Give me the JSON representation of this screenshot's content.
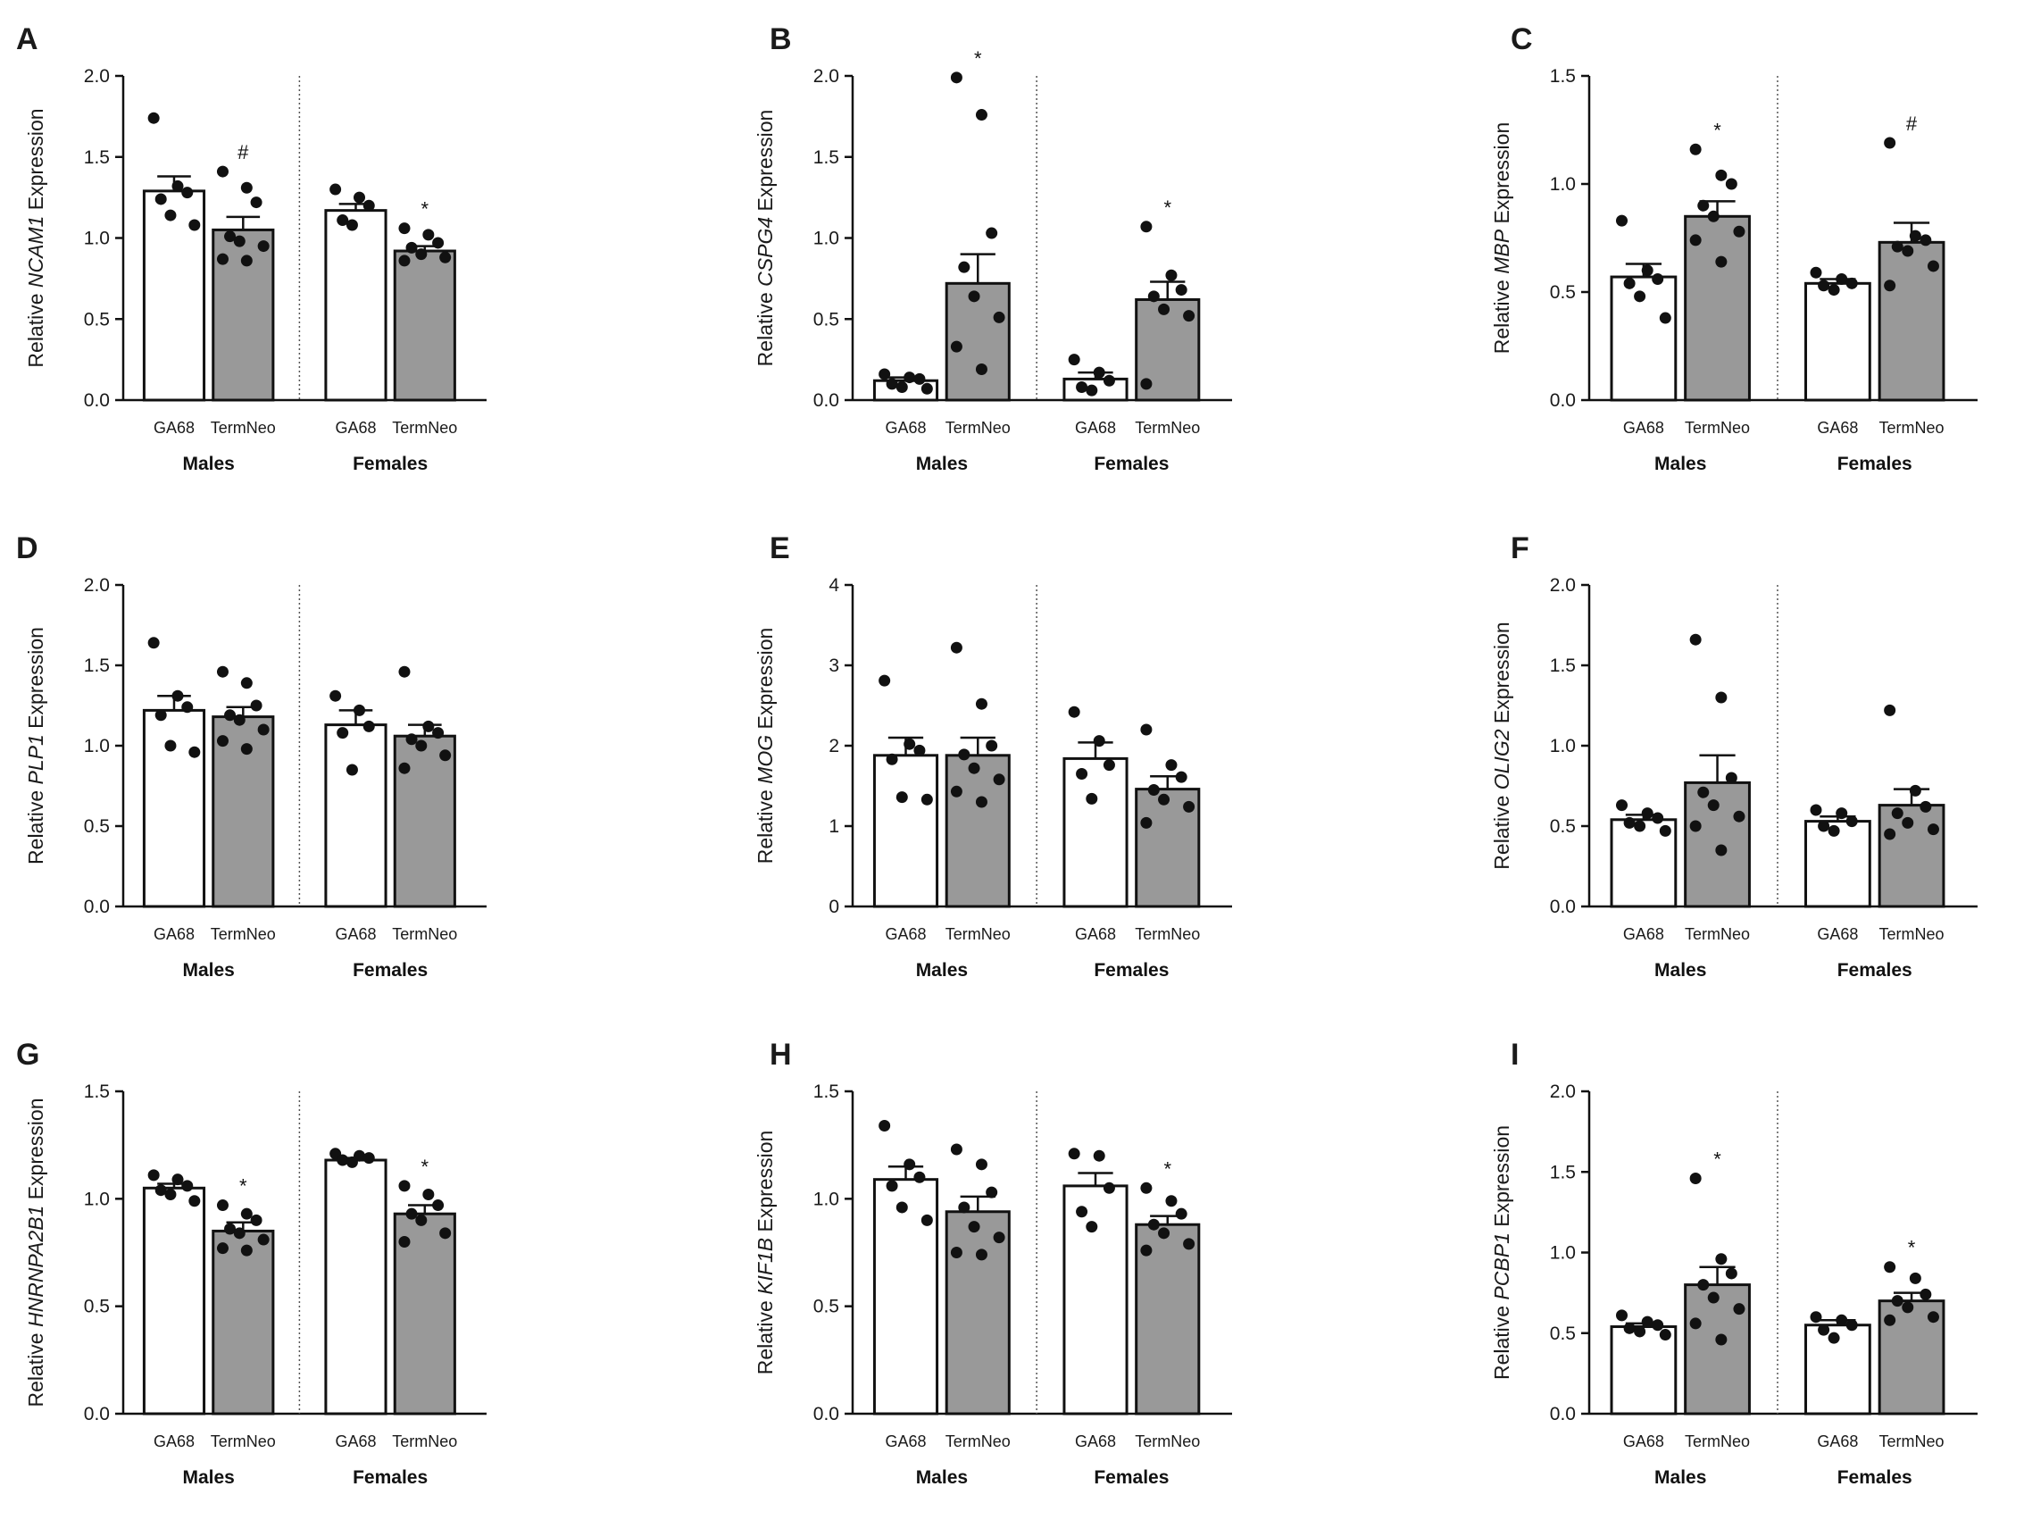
{
  "chart_data": [
    {
      "type": "bar",
      "panel": "A",
      "gene": "NCAM1",
      "ylabel_prefix": "Relative ",
      "ylabel_suffix": " Expression",
      "ylim": [
        0,
        2.0
      ],
      "yticks": [
        "0.0",
        "0.5",
        "1.0",
        "1.5",
        "2.0"
      ],
      "groups": [
        "Males",
        "Females"
      ],
      "categories": [
        "GA68",
        "TermNeo"
      ],
      "bars": [
        {
          "group": "Males",
          "category": "GA68",
          "mean": 1.29,
          "sem": 0.09,
          "points": [
            1.74,
            1.32,
            1.28,
            1.24,
            1.14,
            1.08
          ],
          "sig": ""
        },
        {
          "group": "Males",
          "category": "TermNeo",
          "mean": 1.05,
          "sem": 0.08,
          "points": [
            1.41,
            1.31,
            1.22,
            1.01,
            0.98,
            0.95,
            0.87,
            0.86
          ],
          "sig": "#"
        },
        {
          "group": "Females",
          "category": "GA68",
          "mean": 1.17,
          "sem": 0.04,
          "points": [
            1.3,
            1.25,
            1.2,
            1.11,
            1.08
          ],
          "sig": ""
        },
        {
          "group": "Females",
          "category": "TermNeo",
          "mean": 0.92,
          "sem": 0.03,
          "points": [
            1.06,
            1.02,
            0.97,
            0.94,
            0.9,
            0.88,
            0.86
          ],
          "sig": "*"
        }
      ]
    },
    {
      "type": "bar",
      "panel": "B",
      "gene": "CSPG4",
      "ylabel_prefix": "Relative ",
      "ylabel_suffix": " Expression",
      "ylim": [
        0,
        2.0
      ],
      "yticks": [
        "0.0",
        "0.5",
        "1.0",
        "1.5",
        "2.0"
      ],
      "groups": [
        "Males",
        "Females"
      ],
      "categories": [
        "GA68",
        "TermNeo"
      ],
      "bars": [
        {
          "group": "Males",
          "category": "GA68",
          "mean": 0.12,
          "sem": 0.02,
          "points": [
            0.16,
            0.14,
            0.13,
            0.1,
            0.08,
            0.07
          ],
          "sig": ""
        },
        {
          "group": "Males",
          "category": "TermNeo",
          "mean": 0.72,
          "sem": 0.18,
          "points": [
            1.99,
            1.76,
            1.03,
            0.82,
            0.64,
            0.51,
            0.33,
            0.19
          ],
          "sig": "*"
        },
        {
          "group": "Females",
          "category": "GA68",
          "mean": 0.13,
          "sem": 0.04,
          "points": [
            0.25,
            0.17,
            0.12,
            0.08,
            0.06
          ],
          "sig": ""
        },
        {
          "group": "Females",
          "category": "TermNeo",
          "mean": 0.62,
          "sem": 0.11,
          "points": [
            1.07,
            0.77,
            0.68,
            0.64,
            0.56,
            0.52,
            0.1
          ],
          "sig": "*"
        }
      ]
    },
    {
      "type": "bar",
      "panel": "C",
      "gene": "MBP",
      "ylabel_prefix": "Relative ",
      "ylabel_suffix": " Expression",
      "ylim": [
        0,
        1.5
      ],
      "yticks": [
        "0.0",
        "0.5",
        "1.0",
        "1.5"
      ],
      "groups": [
        "Males",
        "Females"
      ],
      "categories": [
        "GA68",
        "TermNeo"
      ],
      "bars": [
        {
          "group": "Males",
          "category": "GA68",
          "mean": 0.57,
          "sem": 0.06,
          "points": [
            0.83,
            0.6,
            0.56,
            0.54,
            0.48,
            0.38
          ],
          "sig": ""
        },
        {
          "group": "Males",
          "category": "TermNeo",
          "mean": 0.85,
          "sem": 0.07,
          "points": [
            1.16,
            1.04,
            1.0,
            0.9,
            0.85,
            0.78,
            0.74,
            0.64
          ],
          "sig": "*"
        },
        {
          "group": "Females",
          "category": "GA68",
          "mean": 0.54,
          "sem": 0.02,
          "points": [
            0.59,
            0.56,
            0.54,
            0.53,
            0.51
          ],
          "sig": ""
        },
        {
          "group": "Females",
          "category": "TermNeo",
          "mean": 0.73,
          "sem": 0.09,
          "points": [
            1.19,
            0.76,
            0.74,
            0.71,
            0.69,
            0.62,
            0.53
          ],
          "sig": "#"
        }
      ]
    },
    {
      "type": "bar",
      "panel": "D",
      "gene": "PLP1",
      "ylabel_prefix": "Relative ",
      "ylabel_suffix": " Expression",
      "ylim": [
        0,
        2.0
      ],
      "yticks": [
        "0.0",
        "0.5",
        "1.0",
        "1.5",
        "2.0"
      ],
      "groups": [
        "Males",
        "Females"
      ],
      "categories": [
        "GA68",
        "TermNeo"
      ],
      "bars": [
        {
          "group": "Males",
          "category": "GA68",
          "mean": 1.22,
          "sem": 0.09,
          "points": [
            1.64,
            1.31,
            1.24,
            1.19,
            1.0,
            0.96
          ],
          "sig": ""
        },
        {
          "group": "Males",
          "category": "TermNeo",
          "mean": 1.18,
          "sem": 0.06,
          "points": [
            1.46,
            1.39,
            1.25,
            1.19,
            1.16,
            1.1,
            1.03,
            0.98
          ],
          "sig": ""
        },
        {
          "group": "Females",
          "category": "GA68",
          "mean": 1.13,
          "sem": 0.09,
          "points": [
            1.31,
            1.22,
            1.12,
            1.08,
            0.85
          ],
          "sig": ""
        },
        {
          "group": "Females",
          "category": "TermNeo",
          "mean": 1.06,
          "sem": 0.07,
          "points": [
            1.46,
            1.12,
            1.08,
            1.04,
            1.0,
            0.94,
            0.86
          ],
          "sig": ""
        }
      ]
    },
    {
      "type": "bar",
      "panel": "E",
      "gene": "MOG",
      "ylabel_prefix": "Relative ",
      "ylabel_suffix": " Expression",
      "ylim": [
        0,
        4
      ],
      "yticks": [
        "0",
        "1",
        "2",
        "3",
        "4"
      ],
      "groups": [
        "Males",
        "Females"
      ],
      "categories": [
        "GA68",
        "TermNeo"
      ],
      "bars": [
        {
          "group": "Males",
          "category": "GA68",
          "mean": 1.88,
          "sem": 0.22,
          "points": [
            2.81,
            2.02,
            1.94,
            1.83,
            1.36,
            1.33
          ],
          "sig": ""
        },
        {
          "group": "Males",
          "category": "TermNeo",
          "mean": 1.88,
          "sem": 0.22,
          "points": [
            3.22,
            2.52,
            2.0,
            1.89,
            1.72,
            1.58,
            1.43,
            1.3
          ],
          "sig": ""
        },
        {
          "group": "Females",
          "category": "GA68",
          "mean": 1.84,
          "sem": 0.2,
          "points": [
            2.42,
            2.06,
            1.76,
            1.65,
            1.34
          ],
          "sig": ""
        },
        {
          "group": "Females",
          "category": "TermNeo",
          "mean": 1.46,
          "sem": 0.16,
          "points": [
            2.2,
            1.76,
            1.61,
            1.45,
            1.33,
            1.24,
            1.04
          ],
          "sig": ""
        }
      ]
    },
    {
      "type": "bar",
      "panel": "F",
      "gene": "OLIG2",
      "ylabel_prefix": "Relative ",
      "ylabel_suffix": " Expression",
      "ylim": [
        0,
        2.0
      ],
      "yticks": [
        "0.0",
        "0.5",
        "1.0",
        "1.5",
        "2.0"
      ],
      "groups": [
        "Males",
        "Females"
      ],
      "categories": [
        "GA68",
        "TermNeo"
      ],
      "bars": [
        {
          "group": "Males",
          "category": "GA68",
          "mean": 0.54,
          "sem": 0.03,
          "points": [
            0.63,
            0.58,
            0.55,
            0.52,
            0.5,
            0.47
          ],
          "sig": ""
        },
        {
          "group": "Males",
          "category": "TermNeo",
          "mean": 0.77,
          "sem": 0.17,
          "points": [
            1.66,
            1.3,
            0.8,
            0.71,
            0.63,
            0.56,
            0.5,
            0.35
          ],
          "sig": ""
        },
        {
          "group": "Females",
          "category": "GA68",
          "mean": 0.53,
          "sem": 0.03,
          "points": [
            0.6,
            0.58,
            0.53,
            0.5,
            0.47
          ],
          "sig": ""
        },
        {
          "group": "Females",
          "category": "TermNeo",
          "mean": 0.63,
          "sem": 0.1,
          "points": [
            1.22,
            0.72,
            0.62,
            0.58,
            0.52,
            0.48,
            0.45
          ],
          "sig": ""
        }
      ]
    },
    {
      "type": "bar",
      "panel": "G",
      "gene": "HNRNPA2B1",
      "ylabel_prefix": "Relative ",
      "ylabel_suffix": " Expression",
      "ylim": [
        0,
        1.5
      ],
      "yticks": [
        "0.0",
        "0.5",
        "1.0",
        "1.5"
      ],
      "groups": [
        "Males",
        "Females"
      ],
      "categories": [
        "GA68",
        "TermNeo"
      ],
      "bars": [
        {
          "group": "Males",
          "category": "GA68",
          "mean": 1.05,
          "sem": 0.02,
          "points": [
            1.11,
            1.09,
            1.06,
            1.04,
            1.02,
            0.99
          ],
          "sig": ""
        },
        {
          "group": "Males",
          "category": "TermNeo",
          "mean": 0.85,
          "sem": 0.04,
          "points": [
            0.97,
            0.93,
            0.9,
            0.86,
            0.84,
            0.81,
            0.77,
            0.76
          ],
          "sig": "*"
        },
        {
          "group": "Females",
          "category": "GA68",
          "mean": 1.18,
          "sem": 0.01,
          "points": [
            1.21,
            1.2,
            1.19,
            1.18,
            1.17
          ],
          "sig": ""
        },
        {
          "group": "Females",
          "category": "TermNeo",
          "mean": 0.93,
          "sem": 0.04,
          "points": [
            1.06,
            1.02,
            0.97,
            0.93,
            0.9,
            0.84,
            0.8
          ],
          "sig": "*"
        }
      ]
    },
    {
      "type": "bar",
      "panel": "H",
      "gene": "KIF1B",
      "ylabel_prefix": "Relative ",
      "ylabel_suffix": " Expression",
      "ylim": [
        0,
        1.5
      ],
      "yticks": [
        "0.0",
        "0.5",
        "1.0",
        "1.5"
      ],
      "groups": [
        "Males",
        "Females"
      ],
      "categories": [
        "GA68",
        "TermNeo"
      ],
      "bars": [
        {
          "group": "Males",
          "category": "GA68",
          "mean": 1.09,
          "sem": 0.06,
          "points": [
            1.34,
            1.16,
            1.1,
            1.06,
            0.96,
            0.9
          ],
          "sig": ""
        },
        {
          "group": "Males",
          "category": "TermNeo",
          "mean": 0.94,
          "sem": 0.07,
          "points": [
            1.23,
            1.16,
            1.03,
            0.96,
            0.87,
            0.82,
            0.75,
            0.74
          ],
          "sig": ""
        },
        {
          "group": "Females",
          "category": "GA68",
          "mean": 1.06,
          "sem": 0.06,
          "points": [
            1.21,
            1.2,
            1.05,
            0.94,
            0.87
          ],
          "sig": ""
        },
        {
          "group": "Females",
          "category": "TermNeo",
          "mean": 0.88,
          "sem": 0.04,
          "points": [
            1.05,
            0.99,
            0.93,
            0.88,
            0.84,
            0.79,
            0.76
          ],
          "sig": "*"
        }
      ]
    },
    {
      "type": "bar",
      "panel": "I",
      "gene": "PCBP1",
      "ylabel_prefix": "Relative ",
      "ylabel_suffix": " Expression",
      "ylim": [
        0,
        2.0
      ],
      "yticks": [
        "0.0",
        "0.5",
        "1.0",
        "1.5",
        "2.0"
      ],
      "groups": [
        "Males",
        "Females"
      ],
      "categories": [
        "GA68",
        "TermNeo"
      ],
      "bars": [
        {
          "group": "Males",
          "category": "GA68",
          "mean": 0.54,
          "sem": 0.02,
          "points": [
            0.61,
            0.57,
            0.55,
            0.53,
            0.51,
            0.49
          ],
          "sig": ""
        },
        {
          "group": "Males",
          "category": "TermNeo",
          "mean": 0.8,
          "sem": 0.11,
          "points": [
            1.46,
            0.96,
            0.87,
            0.8,
            0.72,
            0.65,
            0.56,
            0.46
          ],
          "sig": "*"
        },
        {
          "group": "Females",
          "category": "GA68",
          "mean": 0.55,
          "sem": 0.03,
          "points": [
            0.6,
            0.58,
            0.55,
            0.52,
            0.47
          ],
          "sig": ""
        },
        {
          "group": "Females",
          "category": "TermNeo",
          "mean": 0.7,
          "sem": 0.05,
          "points": [
            0.91,
            0.84,
            0.74,
            0.7,
            0.66,
            0.6,
            0.58
          ],
          "sig": "*"
        }
      ]
    }
  ],
  "style": {
    "ga68_fill": "#ffffff",
    "termneo_fill": "#999999",
    "stroke": "#111111",
    "divider": "#555555"
  }
}
